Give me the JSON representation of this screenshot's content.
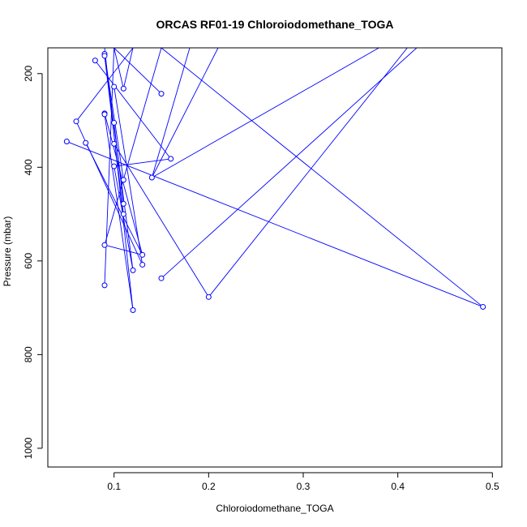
{
  "chart_data": {
    "type": "line",
    "title": "ORCAS RF01-19 Chloroiodomethane_TOGA",
    "xlabel": "Chloroiodomethane_TOGA",
    "ylabel": "Pressure (mbar)",
    "xlim": [
      0.03,
      0.51
    ],
    "ylim": [
      1040,
      145
    ],
    "y_reversed": true,
    "x_ticks": [
      0.1,
      0.2,
      0.3,
      0.4,
      0.5
    ],
    "y_ticks": [
      200,
      400,
      600,
      800,
      1000
    ],
    "x_tick_labels": [
      "0.1",
      "0.2",
      "0.3",
      "0.4",
      "0.5"
    ],
    "y_tick_labels": [
      "200",
      "400",
      "600",
      "800",
      "1000"
    ],
    "grid": false,
    "series": [
      {
        "color": "#0000ff",
        "marker": "open-circle",
        "line_start": {
          "x": 0.1,
          "y": 145
        },
        "line_end": {
          "x": 0.42,
          "y": 145
        },
        "points": [
          {
            "x": 0.09,
            "y": 158
          },
          {
            "x": 0.09,
            "y": 162
          },
          {
            "x": 0.08,
            "y": 172
          },
          {
            "x": 0.1,
            "y": 228
          },
          {
            "x": 0.11,
            "y": 232
          },
          {
            "x": 0.15,
            "y": 243
          },
          {
            "x": 0.09,
            "y": 285
          },
          {
            "x": 0.09,
            "y": 287
          },
          {
            "x": 0.06,
            "y": 302
          },
          {
            "x": 0.1,
            "y": 305
          },
          {
            "x": 0.05,
            "y": 345
          },
          {
            "x": 0.07,
            "y": 348
          },
          {
            "x": 0.1,
            "y": 350
          },
          {
            "x": 0.16,
            "y": 382
          },
          {
            "x": 0.1,
            "y": 398
          },
          {
            "x": 0.14,
            "y": 422
          },
          {
            "x": 0.11,
            "y": 427
          },
          {
            "x": 0.11,
            "y": 478
          },
          {
            "x": 0.11,
            "y": 500
          },
          {
            "x": 0.09,
            "y": 566
          },
          {
            "x": 0.13,
            "y": 587
          },
          {
            "x": 0.13,
            "y": 608
          },
          {
            "x": 0.12,
            "y": 620
          },
          {
            "x": 0.15,
            "y": 637
          },
          {
            "x": 0.09,
            "y": 652
          },
          {
            "x": 0.2,
            "y": 677
          },
          {
            "x": 0.49,
            "y": 698
          },
          {
            "x": 0.12,
            "y": 705
          }
        ],
        "segments": [
          [
            {
              "x": 0.09,
              "y": 145
            },
            {
              "x": 0.12,
              "y": 705
            }
          ],
          [
            {
              "x": 0.1,
              "y": 145
            },
            {
              "x": 0.09,
              "y": 652
            }
          ],
          [
            {
              "x": 0.12,
              "y": 145
            },
            {
              "x": 0.06,
              "y": 302
            }
          ],
          [
            {
              "x": 0.15,
              "y": 145
            },
            {
              "x": 0.09,
              "y": 566
            }
          ],
          [
            {
              "x": 0.09,
              "y": 158
            },
            {
              "x": 0.12,
              "y": 620
            }
          ],
          [
            {
              "x": 0.09,
              "y": 162
            },
            {
              "x": 0.11,
              "y": 500
            }
          ],
          [
            {
              "x": 0.08,
              "y": 172
            },
            {
              "x": 0.16,
              "y": 382
            }
          ],
          [
            {
              "x": 0.1,
              "y": 145
            },
            {
              "x": 0.15,
              "y": 243
            }
          ],
          [
            {
              "x": 0.1,
              "y": 145
            },
            {
              "x": 0.11,
              "y": 232
            }
          ],
          [
            {
              "x": 0.1,
              "y": 228
            },
            {
              "x": 0.13,
              "y": 608
            }
          ],
          [
            {
              "x": 0.09,
              "y": 285
            },
            {
              "x": 0.13,
              "y": 587
            }
          ],
          [
            {
              "x": 0.09,
              "y": 287
            },
            {
              "x": 0.12,
              "y": 705
            }
          ],
          [
            {
              "x": 0.1,
              "y": 305
            },
            {
              "x": 0.11,
              "y": 478
            }
          ],
          [
            {
              "x": 0.05,
              "y": 345
            },
            {
              "x": 0.49,
              "y": 698
            }
          ],
          [
            {
              "x": 0.07,
              "y": 348
            },
            {
              "x": 0.13,
              "y": 587
            }
          ],
          [
            {
              "x": 0.1,
              "y": 350
            },
            {
              "x": 0.2,
              "y": 677
            }
          ],
          [
            {
              "x": 0.16,
              "y": 382
            },
            {
              "x": 0.1,
              "y": 398
            }
          ],
          [
            {
              "x": 0.14,
              "y": 422
            },
            {
              "x": 0.38,
              "y": 145
            }
          ],
          [
            {
              "x": 0.14,
              "y": 422
            },
            {
              "x": 0.18,
              "y": 145
            }
          ],
          [
            {
              "x": 0.11,
              "y": 427
            },
            {
              "x": 0.09,
              "y": 158
            }
          ],
          [
            {
              "x": 0.09,
              "y": 566
            },
            {
              "x": 0.13,
              "y": 587
            }
          ],
          [
            {
              "x": 0.12,
              "y": 620
            },
            {
              "x": 0.1,
              "y": 398
            }
          ],
          [
            {
              "x": 0.15,
              "y": 637
            },
            {
              "x": 0.42,
              "y": 145
            }
          ],
          [
            {
              "x": 0.2,
              "y": 677
            },
            {
              "x": 0.41,
              "y": 145
            }
          ],
          [
            {
              "x": 0.49,
              "y": 698
            },
            {
              "x": 0.15,
              "y": 145
            }
          ],
          [
            {
              "x": 0.06,
              "y": 302
            },
            {
              "x": 0.13,
              "y": 608
            }
          ],
          [
            {
              "x": 0.21,
              "y": 145
            },
            {
              "x": 0.14,
              "y": 422
            }
          ],
          [
            {
              "x": 0.11,
              "y": 232
            },
            {
              "x": 0.12,
              "y": 145
            }
          ]
        ]
      }
    ]
  }
}
